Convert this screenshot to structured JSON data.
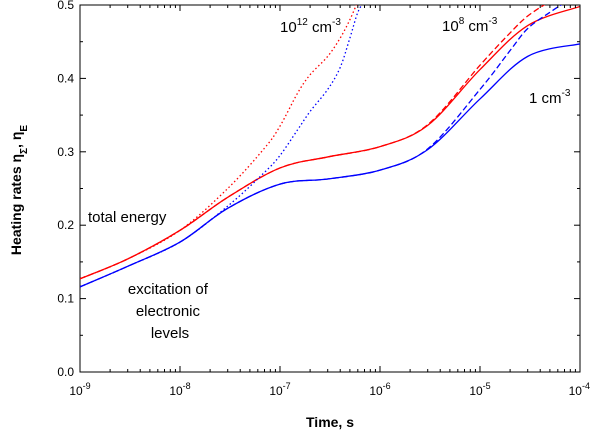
{
  "chart_data": {
    "type": "line",
    "xlabel": "Time, s",
    "ylabel_main": "Heating rates η",
    "ylabel_sub_sigma": "Σ",
    "ylabel_sep": ", η",
    "ylabel_sub_e": "E",
    "x_scale": "log",
    "xlim": [
      1e-09,
      0.0001
    ],
    "ylim": [
      0.0,
      0.5
    ],
    "grid": false,
    "legend": "none",
    "x_ticks": [
      {
        "base": "10",
        "exp": "-9",
        "value": 1e-09
      },
      {
        "base": "10",
        "exp": "-8",
        "value": 1e-08
      },
      {
        "base": "10",
        "exp": "-7",
        "value": 1e-07
      },
      {
        "base": "10",
        "exp": "-6",
        "value": 1e-06
      },
      {
        "base": "10",
        "exp": "-5",
        "value": 1e-05
      },
      {
        "base": "10",
        "exp": "-4",
        "value": 0.0001
      }
    ],
    "y_ticks": [
      "0.0",
      "0.1",
      "0.2",
      "0.3",
      "0.4",
      "0.5"
    ],
    "annotations": {
      "total_energy": "total energy",
      "excitation": [
        "excitation of",
        "electronic",
        "levels"
      ],
      "density_1e12": {
        "base": "10",
        "exp": "12",
        "unit": " cm",
        "unit_exp": "-3"
      },
      "density_1e8": {
        "base": "10",
        "exp": "8",
        "unit": " cm",
        "unit_exp": "-3"
      },
      "density_1": {
        "base": "1 cm",
        "unit_exp": "-3"
      }
    },
    "series": [
      {
        "group": "total energy",
        "density": "1 cm^-3",
        "color": "#ff0000",
        "style": "solid",
        "x": [
          1e-09,
          3e-09,
          1e-08,
          3e-08,
          1e-07,
          3e-07,
          1e-06,
          3e-06,
          1e-05,
          3e-05,
          0.0001
        ],
        "y": [
          0.127,
          0.154,
          0.193,
          0.238,
          0.278,
          0.293,
          0.307,
          0.336,
          0.412,
          0.472,
          0.498
        ]
      },
      {
        "group": "total energy",
        "density": "10^8 cm^-3",
        "color": "#ff0000",
        "style": "dashed",
        "x": [
          1e-09,
          3e-09,
          1e-08,
          3e-08,
          1e-07,
          3e-07,
          1e-06,
          3e-06,
          1e-05,
          2e-05,
          3e-05,
          5e-05
        ],
        "y": [
          0.127,
          0.154,
          0.193,
          0.238,
          0.278,
          0.293,
          0.307,
          0.337,
          0.418,
          0.462,
          0.485,
          0.505
        ]
      },
      {
        "group": "total energy",
        "density": "10^12 cm^-3",
        "color": "#ff0000",
        "style": "dotted",
        "x": [
          1e-09,
          3e-09,
          1e-08,
          3e-08,
          7e-08,
          1e-07,
          1.5e-07,
          2e-07,
          3e-07,
          4e-07,
          5e-07,
          6e-07
        ],
        "y": [
          0.127,
          0.154,
          0.193,
          0.25,
          0.305,
          0.335,
          0.38,
          0.405,
          0.43,
          0.455,
          0.48,
          0.505
        ]
      },
      {
        "group": "excitation of electronic levels",
        "density": "1 cm^-3",
        "color": "#0000ff",
        "style": "solid",
        "x": [
          1e-09,
          3e-09,
          1e-08,
          3e-08,
          1e-07,
          3e-07,
          1e-06,
          3e-06,
          1e-05,
          3e-05,
          0.0001
        ],
        "y": [
          0.116,
          0.144,
          0.177,
          0.223,
          0.256,
          0.263,
          0.275,
          0.303,
          0.372,
          0.43,
          0.447
        ]
      },
      {
        "group": "excitation of electronic levels",
        "density": "10^8 cm^-3",
        "color": "#0000ff",
        "style": "dashed",
        "x": [
          1e-09,
          3e-09,
          1e-08,
          3e-08,
          1e-07,
          3e-07,
          1e-06,
          3e-06,
          1e-05,
          2e-05,
          3e-05,
          5e-05,
          7e-05
        ],
        "y": [
          0.116,
          0.144,
          0.177,
          0.223,
          0.256,
          0.263,
          0.275,
          0.304,
          0.385,
          0.438,
          0.468,
          0.49,
          0.503
        ]
      },
      {
        "group": "excitation of electronic levels",
        "density": "10^12 cm^-3",
        "color": "#0000ff",
        "style": "dotted",
        "x": [
          1e-09,
          3e-09,
          1e-08,
          3e-08,
          7e-08,
          1e-07,
          1.5e-07,
          2e-07,
          3e-07,
          4e-07,
          5e-07,
          6e-07,
          7e-07
        ],
        "y": [
          0.116,
          0.144,
          0.177,
          0.226,
          0.272,
          0.295,
          0.33,
          0.355,
          0.385,
          0.415,
          0.455,
          0.49,
          0.505
        ]
      }
    ]
  }
}
